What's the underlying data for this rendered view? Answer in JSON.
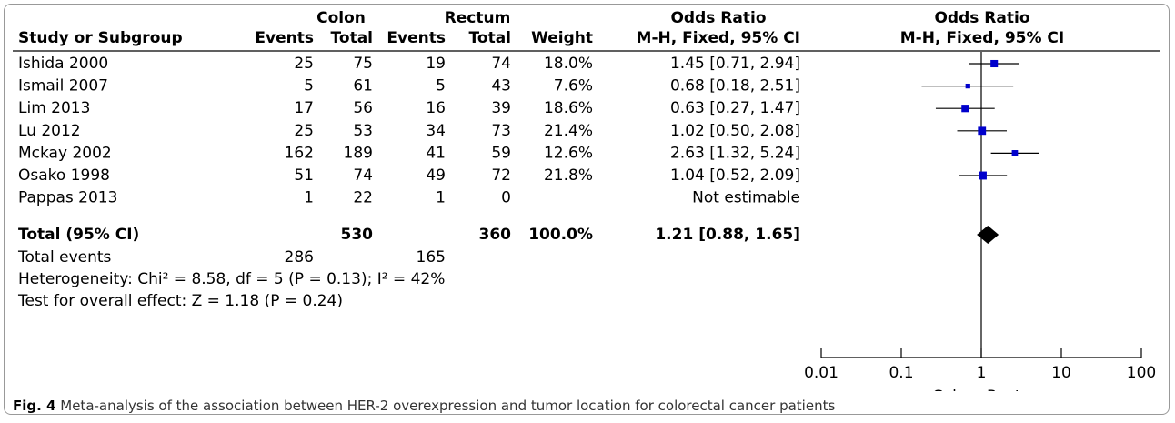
{
  "chart_data": {
    "type": "forest",
    "group_headers": [
      "Colon",
      "Rectum",
      "Odds Ratio",
      "Odds Ratio"
    ],
    "column_headers": [
      "Study or Subgroup",
      "Events",
      "Total",
      "Events",
      "Total",
      "Weight",
      "M-H, Fixed, 95% CI",
      "M-H, Fixed, 95% CI"
    ],
    "studies": [
      {
        "name": "Ishida 2000",
        "colon_events": 25,
        "colon_total": 75,
        "rectum_events": 19,
        "rectum_total": 74,
        "weight": 18.0,
        "weight_label": "18.0%",
        "or": 1.45,
        "ci_low": 0.71,
        "ci_high": 2.94,
        "or_label": "1.45 [0.71, 2.94]"
      },
      {
        "name": "Ismail 2007",
        "colon_events": 5,
        "colon_total": 61,
        "rectum_events": 5,
        "rectum_total": 43,
        "weight": 7.6,
        "weight_label": "7.6%",
        "or": 0.68,
        "ci_low": 0.18,
        "ci_high": 2.51,
        "or_label": "0.68 [0.18, 2.51]"
      },
      {
        "name": "Lim 2013",
        "colon_events": 17,
        "colon_total": 56,
        "rectum_events": 16,
        "rectum_total": 39,
        "weight": 18.6,
        "weight_label": "18.6%",
        "or": 0.63,
        "ci_low": 0.27,
        "ci_high": 1.47,
        "or_label": "0.63 [0.27, 1.47]"
      },
      {
        "name": "Lu 2012",
        "colon_events": 25,
        "colon_total": 53,
        "rectum_events": 34,
        "rectum_total": 73,
        "weight": 21.4,
        "weight_label": "21.4%",
        "or": 1.02,
        "ci_low": 0.5,
        "ci_high": 2.08,
        "or_label": "1.02 [0.50, 2.08]"
      },
      {
        "name": "Mckay 2002",
        "colon_events": 162,
        "colon_total": 189,
        "rectum_events": 41,
        "rectum_total": 59,
        "weight": 12.6,
        "weight_label": "12.6%",
        "or": 2.63,
        "ci_low": 1.32,
        "ci_high": 5.24,
        "or_label": "2.63 [1.32, 5.24]"
      },
      {
        "name": "Osako 1998",
        "colon_events": 51,
        "colon_total": 74,
        "rectum_events": 49,
        "rectum_total": 72,
        "weight": 21.8,
        "weight_label": "21.8%",
        "or": 1.04,
        "ci_low": 0.52,
        "ci_high": 2.09,
        "or_label": "1.04 [0.52, 2.09]"
      },
      {
        "name": "Pappas 2013",
        "colon_events": 1,
        "colon_total": 22,
        "rectum_events": 1,
        "rectum_total": 0,
        "weight": null,
        "weight_label": null,
        "or": null,
        "ci_low": null,
        "ci_high": null,
        "or_label": "Not estimable"
      }
    ],
    "total": {
      "name": "Total (95% CI)",
      "colon_total": 530,
      "rectum_total": 360,
      "weight": 100.0,
      "weight_label": "100.0%",
      "or": 1.21,
      "ci_low": 0.88,
      "ci_high": 1.65,
      "or_label": "1.21 [0.88, 1.65]"
    },
    "total_events": {
      "name": "Total events",
      "colon": 286,
      "rectum": 165
    },
    "heterogeneity": "Heterogeneity: Chi² = 8.58, df = 5 (P = 0.13); I² = 42%",
    "overall_effect": "Test for overall effect: Z = 1.18 (P = 0.24)",
    "xscale": "log",
    "xlim": [
      0.01,
      100
    ],
    "xticks": [
      0.01,
      0.1,
      1,
      10,
      100
    ],
    "axis_labels": [
      "Colon",
      "Rectum"
    ],
    "marker_color": "#0000cc",
    "caption_label": "Fig. 4",
    "caption": "Meta-analysis of the association between HER-2 overexpression and tumor location for colorectal cancer patients"
  }
}
